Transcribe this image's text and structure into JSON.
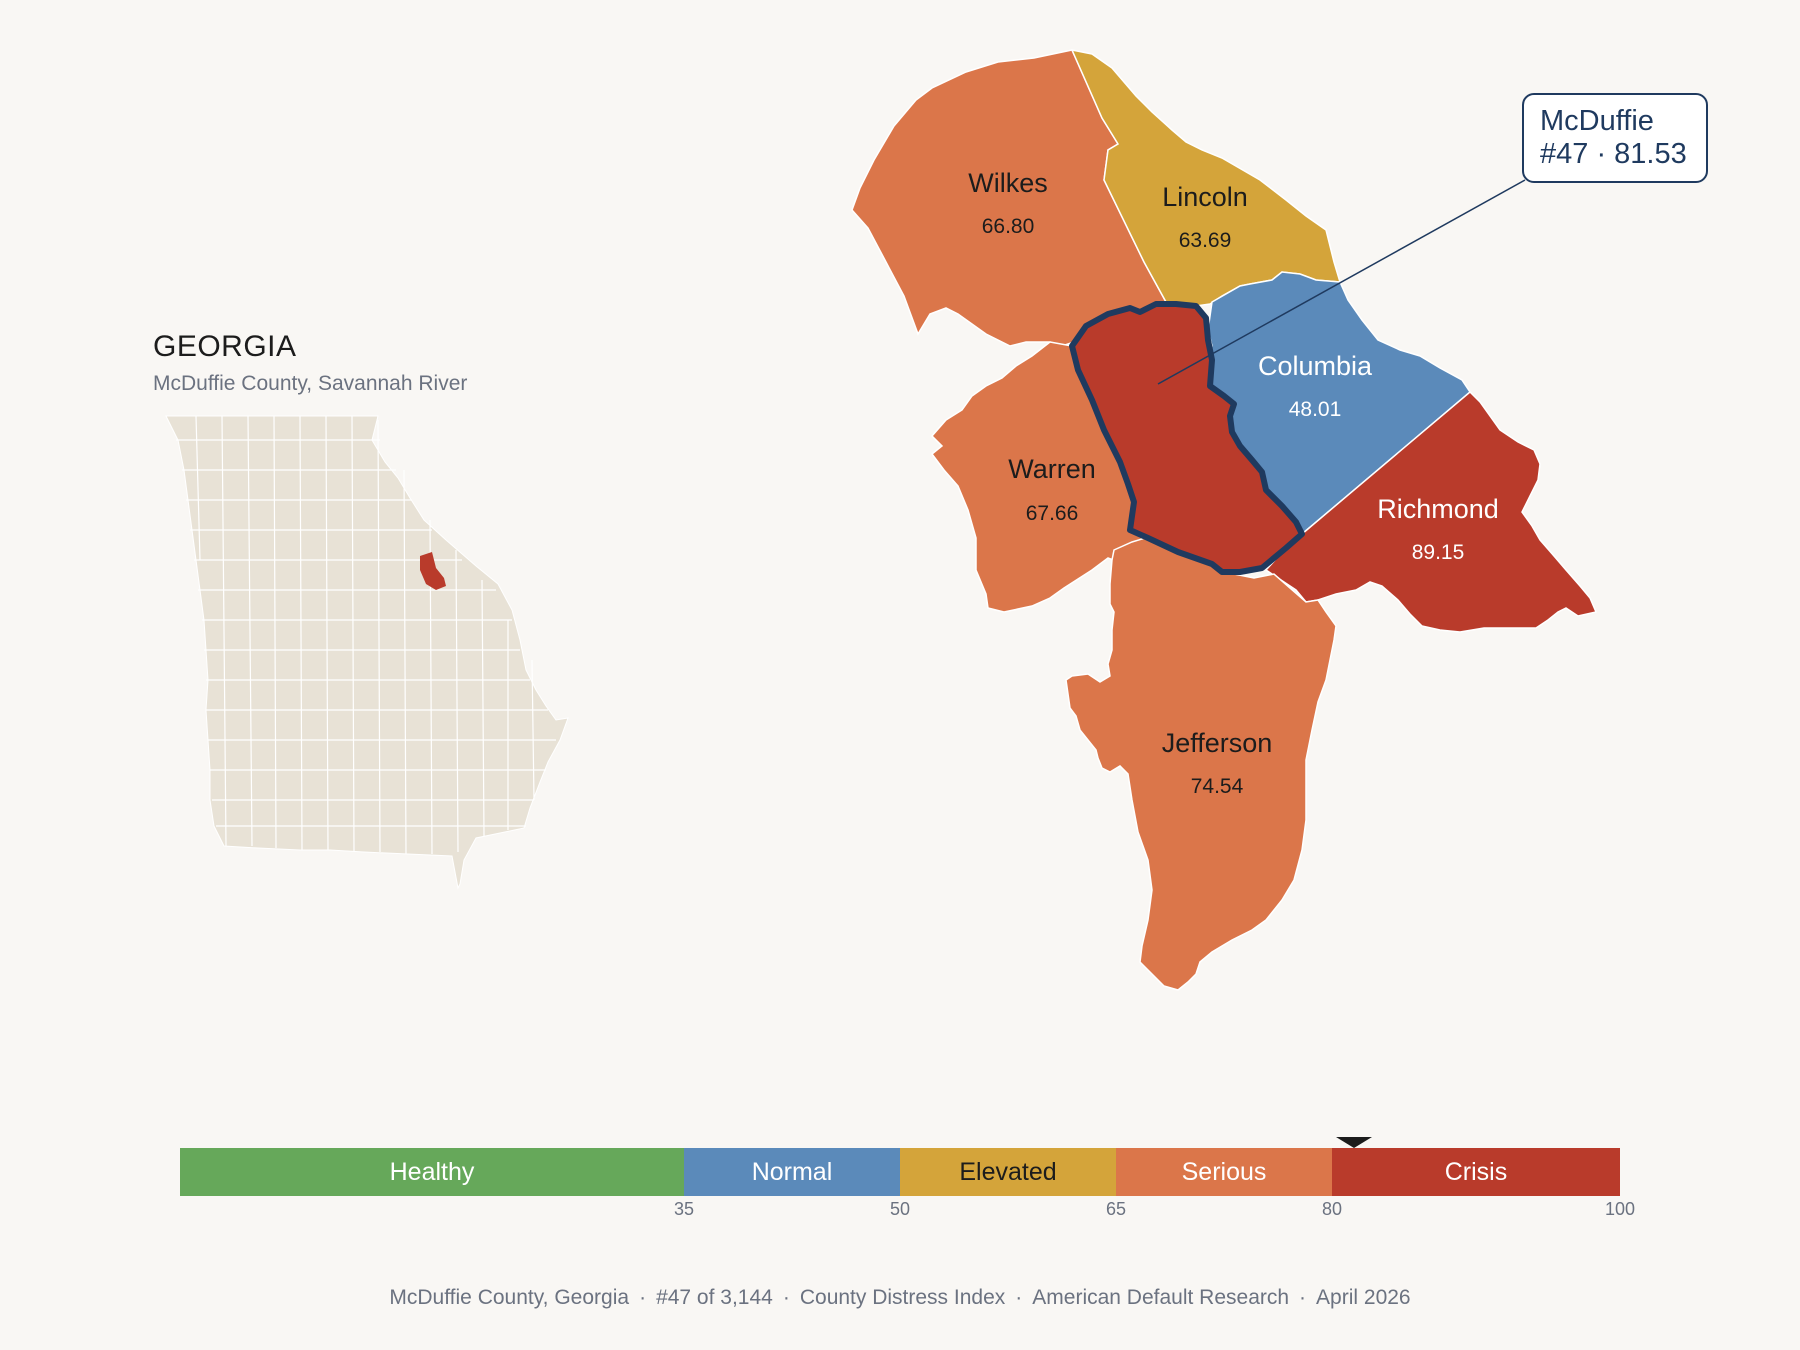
{
  "state": {
    "name": "GEORGIA",
    "subtitle": "McDuffie County, Savannah River"
  },
  "colors": {
    "background": "#f9f7f4",
    "state_fill": "#e8e2d6",
    "healthy": "#66a85a",
    "normal": "#5b8aba",
    "elevated": "#d4a43a",
    "serious": "#db764a",
    "crisis": "#b93b2b",
    "focus_outline": "#1f3a5f"
  },
  "counties": [
    {
      "name": "Wilkes",
      "score": "66.80",
      "band": "serious"
    },
    {
      "name": "Lincoln",
      "score": "63.69",
      "band": "elevated"
    },
    {
      "name": "Columbia",
      "score": "48.01",
      "band": "normal"
    },
    {
      "name": "Warren",
      "score": "67.66",
      "band": "serious"
    },
    {
      "name": "Richmond",
      "score": "89.15",
      "band": "crisis"
    },
    {
      "name": "Jefferson",
      "score": "74.54",
      "band": "serious"
    },
    {
      "name": "McDuffie",
      "score": "81.53",
      "band": "crisis"
    }
  ],
  "callout": {
    "county": "McDuffie",
    "detail": "#47 · 81.53"
  },
  "legend": {
    "segments": [
      {
        "label": "Healthy",
        "from": 0,
        "to": 35
      },
      {
        "label": "Normal",
        "from": 35,
        "to": 50
      },
      {
        "label": "Elevated",
        "from": 50,
        "to": 65
      },
      {
        "label": "Serious",
        "from": 65,
        "to": 80
      },
      {
        "label": "Crisis",
        "from": 80,
        "to": 100
      }
    ],
    "ticks": [
      "35",
      "50",
      "65",
      "80",
      "100"
    ],
    "marker_value": 81.53
  },
  "footer": {
    "county": "McDuffie County, Georgia",
    "rank": "#47 of 3,144",
    "index": "County Distress Index",
    "source": "American Default Research",
    "date": "April 2026",
    "separator": "·"
  }
}
